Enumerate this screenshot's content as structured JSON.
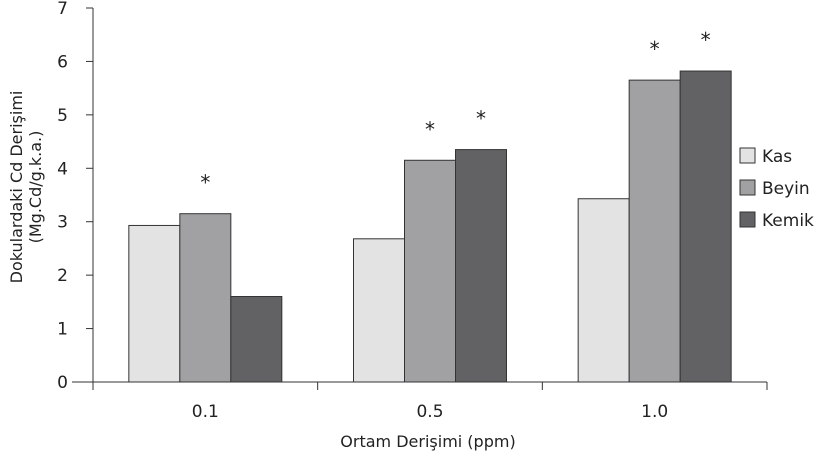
{
  "chart_data": {
    "type": "bar",
    "categories": [
      "0.1",
      "0.5",
      "1.0"
    ],
    "series": [
      {
        "name": "Kas",
        "values": [
          2.93,
          2.68,
          3.43
        ],
        "color": "#e3e3e3"
      },
      {
        "name": "Beyin",
        "values": [
          3.15,
          4.15,
          5.65
        ],
        "color": "#a1a1a3"
      },
      {
        "name": "Kemik",
        "values": [
          1.6,
          4.35,
          5.82
        ],
        "color": "#626264"
      }
    ],
    "significance": [
      {
        "category": "0.1",
        "series": "Beyin",
        "label": "*"
      },
      {
        "category": "0.5",
        "series": "Beyin",
        "label": "*"
      },
      {
        "category": "0.5",
        "series": "Kemik",
        "label": "*"
      },
      {
        "category": "1.0",
        "series": "Beyin",
        "label": "*"
      },
      {
        "category": "1.0",
        "series": "Kemik",
        "label": "*"
      }
    ],
    "xlabel": "Ortam Derişimi (ppm)",
    "ylabel": "Dokulardaki Cd Derişimi",
    "ylabel_sub": "(Mg.Cd/g.k.a.)",
    "ylim": [
      0,
      7
    ],
    "yticks": [
      0,
      1,
      2,
      3,
      4,
      5,
      6,
      7
    ],
    "legend": "right"
  }
}
